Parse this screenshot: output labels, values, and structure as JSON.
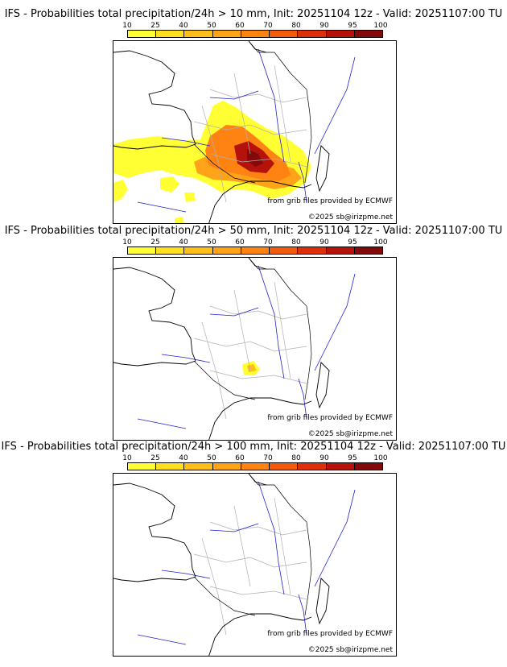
{
  "colorbar": {
    "labels": [
      "10",
      "25",
      "40",
      "50",
      "60",
      "70",
      "80",
      "90",
      "95",
      "100"
    ],
    "colors": [
      "#ffff33",
      "#ffdf1f",
      "#ffbf1a",
      "#ffa319",
      "#ff8313",
      "#f25a0c",
      "#dc2f0a",
      "#b4120a",
      "#820a0a"
    ]
  },
  "map_colors": {
    "coast": "#000000",
    "rivers": "#2020d0",
    "borders": "#b0b0b0"
  },
  "panels": [
    {
      "title": "IFS - Probabilities total precipitation/24h > 10 mm, Init: 20251104 12z - Valid: 20251107:00 TU",
      "credit": "from grib files provided by ECMWF",
      "copyright": "©2025 sb@irizpme.net",
      "precip_areas": [
        {
          "name": "main-rain-area",
          "level": "10"
        },
        {
          "name": "rain-core",
          "level": "60"
        },
        {
          "name": "rain-max",
          "level": "95"
        }
      ]
    },
    {
      "title": "IFS - Probabilities total precipitation/24h > 50 mm, Init: 20251104 12z - Valid: 20251107:00 TU",
      "credit": "from grib files provided by ECMWF",
      "copyright": "©2025 sb@irizpme.net",
      "precip_areas": [
        {
          "name": "small-rain-patch",
          "level": "40"
        }
      ]
    },
    {
      "title": "IFS - Probabilities total precipitation/24h > 100 mm, Init: 20251104 12z - Valid: 20251107:00 TU",
      "credit": "from grib files provided by ECMWF",
      "copyright": "©2025 sb@irizpme.net",
      "precip_areas": []
    }
  ]
}
